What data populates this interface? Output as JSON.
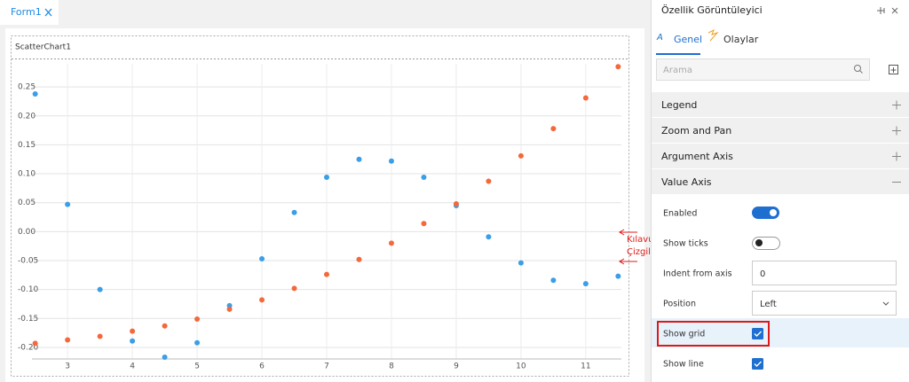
{
  "tab": {
    "title": "Form1"
  },
  "chart_data": {
    "type": "scatter",
    "title": "ScatterChart1",
    "xlim": [
      2.45,
      11.55
    ],
    "ylim": [
      -0.22,
      0.29
    ],
    "xticks": [
      3,
      4,
      5,
      6,
      7,
      8,
      9,
      10,
      11
    ],
    "yticks": [
      0.25,
      {
        "value": 0.2,
        "label": "0.20"
      },
      0.15,
      {
        "value": 0.1,
        "label": "0.10"
      },
      0.05,
      {
        "value": 0,
        "label": "0.00"
      },
      -0.05,
      {
        "value": -0.1,
        "label": "-0.10"
      },
      -0.15,
      {
        "value": -0.2,
        "label": "-0.20"
      }
    ],
    "grid": true,
    "annotation": [
      "Kılavuz",
      "Çizgiler"
    ],
    "series": [
      {
        "color": "#3a9ee8",
        "x": [
          2.5,
          3,
          3.5,
          4,
          4.5,
          5,
          5.5,
          6,
          6.5,
          7,
          7.5,
          8,
          8.5,
          9,
          9.5,
          10,
          10.5,
          11,
          11.5
        ],
        "values": [
          0.238,
          0.047,
          -0.1,
          -0.189,
          -0.217,
          -0.192,
          -0.128,
          -0.047,
          0.033,
          0.094,
          0.125,
          0.122,
          0.094,
          0.045,
          -0.009,
          -0.054,
          -0.084,
          -0.09,
          -0.077
        ]
      },
      {
        "color": "#f4683a",
        "x": [
          2.5,
          3,
          3.5,
          4,
          4.5,
          5,
          5.5,
          6,
          6.5,
          7,
          7.5,
          8,
          8.5,
          9,
          9.5,
          10,
          10.5,
          11,
          11.5
        ],
        "values": [
          -0.193,
          -0.187,
          -0.181,
          -0.172,
          -0.163,
          -0.151,
          -0.134,
          -0.118,
          -0.098,
          -0.074,
          -0.048,
          -0.02,
          0.014,
          0.048,
          0.087,
          0.131,
          0.178,
          0.231,
          0.285
        ]
      }
    ]
  },
  "panel": {
    "title": "Özellik Görüntüleyici",
    "tabs": [
      "Genel",
      "Olaylar"
    ],
    "search_placeholder": "Arama",
    "sections": [
      {
        "label": "Legend",
        "expanded": false
      },
      {
        "label": "Zoom and Pan",
        "expanded": false
      },
      {
        "label": "Argument Axis",
        "expanded": false
      },
      {
        "label": "Value Axis",
        "expanded": true
      }
    ],
    "properties": [
      {
        "label": "Enabled",
        "kind": "toggle",
        "on": true
      },
      {
        "label": "Show ticks",
        "kind": "toggle",
        "on": false
      },
      {
        "label": "Indent from axis",
        "kind": "input",
        "value": "0"
      },
      {
        "label": "Position",
        "kind": "select",
        "value": "Left"
      },
      {
        "label": "Show grid",
        "kind": "checkbox",
        "on": true,
        "highlight": true
      },
      {
        "label": "Show line",
        "kind": "checkbox",
        "on": true
      }
    ]
  }
}
